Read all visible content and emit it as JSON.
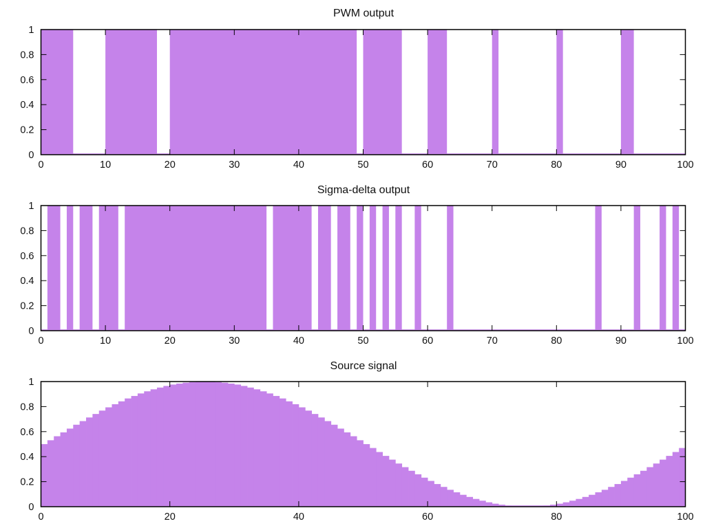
{
  "figure": {
    "background": "#ffffff",
    "axis_color": "#000000",
    "text_color": "#111111"
  },
  "chart_data": [
    {
      "type": "bar",
      "title": "PWM output",
      "signal": "binary",
      "xlim": [
        0,
        100
      ],
      "ylim": [
        0,
        1
      ],
      "grid": false,
      "legend": null,
      "fill_color": "#c583ea",
      "x_tick_values": [
        0,
        10,
        20,
        30,
        40,
        50,
        60,
        70,
        80,
        90,
        100
      ],
      "x_tick_labels": [
        "0",
        "10",
        "20",
        "30",
        "40",
        "50",
        "60",
        "70",
        "80",
        "90",
        "100"
      ],
      "y_tick_values": [
        0,
        0.2,
        0.4,
        0.6,
        0.8,
        1
      ],
      "y_tick_labels": [
        "0",
        "0.2",
        "0.4",
        "0.6",
        "0.8",
        "1"
      ],
      "high_runs": [
        [
          0,
          5
        ],
        [
          10,
          18
        ],
        [
          20,
          49
        ],
        [
          50,
          56
        ],
        [
          60,
          63
        ],
        [
          70,
          71
        ],
        [
          80,
          81
        ],
        [
          90,
          92
        ]
      ]
    },
    {
      "type": "bar",
      "title": "Sigma-delta output",
      "signal": "binary",
      "xlim": [
        0,
        100
      ],
      "ylim": [
        0,
        1
      ],
      "grid": false,
      "legend": null,
      "fill_color": "#c583ea",
      "x_tick_values": [
        0,
        10,
        20,
        30,
        40,
        50,
        60,
        70,
        80,
        90,
        100
      ],
      "x_tick_labels": [
        "0",
        "10",
        "20",
        "30",
        "40",
        "50",
        "60",
        "70",
        "80",
        "90",
        "100"
      ],
      "y_tick_values": [
        0,
        0.2,
        0.4,
        0.6,
        0.8,
        1
      ],
      "y_tick_labels": [
        "0",
        "0.2",
        "0.4",
        "0.6",
        "0.8",
        "1"
      ],
      "high_runs": [
        [
          1,
          3
        ],
        [
          4,
          5
        ],
        [
          6,
          8
        ],
        [
          9,
          12
        ],
        [
          13,
          35
        ],
        [
          36,
          42
        ],
        [
          43,
          45
        ],
        [
          46,
          48
        ],
        [
          49,
          50
        ],
        [
          51,
          52
        ],
        [
          53,
          54
        ],
        [
          55,
          56
        ],
        [
          58,
          59
        ],
        [
          63,
          64
        ],
        [
          86,
          87
        ],
        [
          92,
          93
        ],
        [
          96,
          97
        ],
        [
          98,
          99
        ]
      ]
    },
    {
      "type": "bar",
      "title": "Source signal",
      "signal": "staircase-sine",
      "xlim": [
        0,
        100
      ],
      "ylim": [
        0,
        1
      ],
      "grid": false,
      "legend": null,
      "fill_color": "#c583ea",
      "x_step": 1,
      "x_tick_values": [
        0,
        20,
        40,
        60,
        80,
        100
      ],
      "x_tick_labels": [
        "0",
        "20",
        "40",
        "60",
        "80",
        "100"
      ],
      "y_tick_values": [
        0,
        0.2,
        0.4,
        0.6,
        0.8,
        1
      ],
      "y_tick_labels": [
        "0",
        "0.2",
        "0.4",
        "0.6",
        "0.8",
        "1"
      ],
      "values": [
        0.5,
        0.531,
        0.563,
        0.594,
        0.624,
        0.655,
        0.684,
        0.713,
        0.741,
        0.768,
        0.794,
        0.819,
        0.842,
        0.865,
        0.885,
        0.905,
        0.922,
        0.938,
        0.952,
        0.965,
        0.976,
        0.984,
        0.991,
        0.996,
        0.999,
        1.0,
        0.999,
        0.996,
        0.991,
        0.984,
        0.976,
        0.965,
        0.952,
        0.938,
        0.922,
        0.905,
        0.885,
        0.865,
        0.842,
        0.819,
        0.794,
        0.768,
        0.741,
        0.713,
        0.684,
        0.655,
        0.624,
        0.594,
        0.563,
        0.531,
        0.5,
        0.469,
        0.437,
        0.406,
        0.376,
        0.345,
        0.316,
        0.287,
        0.259,
        0.232,
        0.206,
        0.181,
        0.158,
        0.135,
        0.115,
        0.095,
        0.078,
        0.062,
        0.048,
        0.035,
        0.024,
        0.016,
        0.009,
        0.004,
        0.001,
        0.0,
        0.001,
        0.004,
        0.009,
        0.016,
        0.024,
        0.035,
        0.048,
        0.062,
        0.078,
        0.095,
        0.115,
        0.135,
        0.158,
        0.181,
        0.206,
        0.232,
        0.259,
        0.287,
        0.316,
        0.345,
        0.376,
        0.406,
        0.437,
        0.469
      ]
    }
  ]
}
